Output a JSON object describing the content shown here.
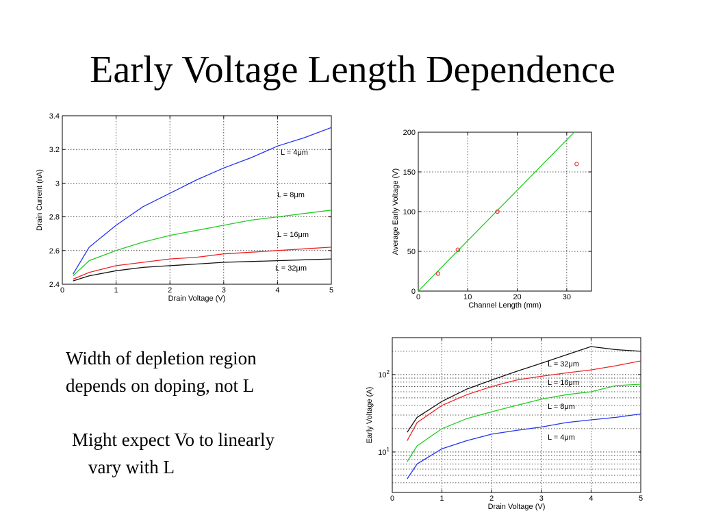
{
  "title": "Early Voltage Length Dependence",
  "text_blocks": {
    "block1": [
      "Width of depletion region",
      "depends on doping, not L"
    ],
    "block2": [
      "Might expect Vo to linearly",
      "vary with L"
    ]
  },
  "chart_data": [
    {
      "type": "line",
      "xlabel": "Drain Voltage (V)",
      "ylabel": "Drain Current (nA)",
      "xlim": [
        0,
        5
      ],
      "ylim": [
        2.4,
        3.4
      ],
      "x_ticks": [
        0,
        1,
        2,
        3,
        4,
        5
      ],
      "y_ticks": [
        2.4,
        2.6,
        2.8,
        3,
        3.2,
        3.4
      ],
      "y_tick_labels": [
        "2.4",
        "2.6",
        "2.8",
        "3",
        "3.2",
        "3.4"
      ],
      "grid": true,
      "series": [
        {
          "name": "L = 4μm",
          "color": "#2233ee",
          "points": [
            [
              0.2,
              2.46
            ],
            [
              0.5,
              2.62
            ],
            [
              1,
              2.75
            ],
            [
              1.5,
              2.86
            ],
            [
              2,
              2.94
            ],
            [
              2.5,
              3.02
            ],
            [
              3,
              3.09
            ],
            [
              3.5,
              3.15
            ],
            [
              4,
              3.22
            ],
            [
              4.5,
              3.27
            ],
            [
              5,
              3.33
            ]
          ]
        },
        {
          "name": "L = 8μm",
          "color": "#22cc22",
          "points": [
            [
              0.2,
              2.45
            ],
            [
              0.5,
              2.54
            ],
            [
              1,
              2.6
            ],
            [
              1.5,
              2.65
            ],
            [
              2,
              2.69
            ],
            [
              2.5,
              2.72
            ],
            [
              3,
              2.75
            ],
            [
              3.5,
              2.78
            ],
            [
              4,
              2.8
            ],
            [
              4.5,
              2.82
            ],
            [
              5,
              2.84
            ]
          ]
        },
        {
          "name": "L = 16μm",
          "color": "#ee2222",
          "points": [
            [
              0.2,
              2.43
            ],
            [
              0.5,
              2.47
            ],
            [
              1,
              2.51
            ],
            [
              1.5,
              2.53
            ],
            [
              2,
              2.55
            ],
            [
              2.5,
              2.56
            ],
            [
              3,
              2.58
            ],
            [
              3.5,
              2.59
            ],
            [
              4,
              2.6
            ],
            [
              4.5,
              2.61
            ],
            [
              5,
              2.62
            ]
          ]
        },
        {
          "name": "L = 32μm",
          "color": "#111111",
          "points": [
            [
              0.2,
              2.42
            ],
            [
              0.5,
              2.45
            ],
            [
              1,
              2.48
            ],
            [
              1.5,
              2.5
            ],
            [
              2,
              2.51
            ],
            [
              2.5,
              2.52
            ],
            [
              3,
              2.53
            ],
            [
              3.5,
              2.535
            ],
            [
              4,
              2.54
            ],
            [
              4.5,
              2.545
            ],
            [
              5,
              2.55
            ]
          ]
        }
      ]
    },
    {
      "type": "scatter",
      "xlabel": "Channel Length (mm)",
      "ylabel": "Average Early Voltage (V)",
      "xlim": [
        0,
        35
      ],
      "ylim": [
        0,
        200
      ],
      "x_ticks": [
        0,
        10,
        20,
        30
      ],
      "y_ticks": [
        0,
        50,
        100,
        150,
        200
      ],
      "grid": true,
      "series": [
        {
          "color": "#ee3333",
          "points": [
            [
              4,
              22
            ],
            [
              8,
              52
            ],
            [
              16,
              100
            ],
            [
              32,
              160
            ]
          ]
        },
        {
          "type": "line",
          "color": "#22cc22",
          "points": [
            [
              0,
              0
            ],
            [
              32,
              203
            ]
          ]
        }
      ]
    },
    {
      "type": "line",
      "xlabel": "Drain Voltage (V)",
      "ylabel": "Early Voltage (A)",
      "y_scale": "log",
      "xlim": [
        0,
        5
      ],
      "ylim": [
        3,
        300
      ],
      "x_ticks": [
        0,
        1,
        2,
        3,
        4,
        5
      ],
      "y_ticks": [
        10,
        100
      ],
      "y_tick_labels": [
        {
          "base": "10",
          "exp": "1"
        },
        {
          "base": "10",
          "exp": "2"
        }
      ],
      "grid": true,
      "series": [
        {
          "name": "L = 32μm",
          "color": "#111111",
          "points": [
            [
              0.3,
              18
            ],
            [
              0.5,
              28
            ],
            [
              1,
              45
            ],
            [
              1.5,
              65
            ],
            [
              2,
              85
            ],
            [
              2.5,
              110
            ],
            [
              3,
              140
            ],
            [
              3.5,
              180
            ],
            [
              4,
              230
            ],
            [
              4.5,
              210
            ],
            [
              5,
              200
            ]
          ]
        },
        {
          "name": "L = 16μm",
          "color": "#ee2222",
          "points": [
            [
              0.3,
              14
            ],
            [
              0.5,
              24
            ],
            [
              1,
              40
            ],
            [
              1.5,
              55
            ],
            [
              2,
              70
            ],
            [
              2.5,
              85
            ],
            [
              3,
              95
            ],
            [
              3.5,
              105
            ],
            [
              4,
              115
            ],
            [
              4.5,
              130
            ],
            [
              5,
              150
            ]
          ]
        },
        {
          "name": "L = 8μm",
          "color": "#22cc22",
          "points": [
            [
              0.3,
              7.5
            ],
            [
              0.5,
              12
            ],
            [
              1,
              20
            ],
            [
              1.5,
              27
            ],
            [
              2,
              33
            ],
            [
              2.5,
              40
            ],
            [
              3,
              48
            ],
            [
              3.5,
              55
            ],
            [
              4,
              60
            ],
            [
              4.5,
              72
            ],
            [
              5,
              75
            ]
          ]
        },
        {
          "name": "L = 4μm",
          "color": "#2233ee",
          "points": [
            [
              0.3,
              4.5
            ],
            [
              0.5,
              7
            ],
            [
              1,
              11
            ],
            [
              1.5,
              14
            ],
            [
              2,
              17
            ],
            [
              2.5,
              19
            ],
            [
              3,
              21
            ],
            [
              3.5,
              24
            ],
            [
              4,
              26
            ],
            [
              4.5,
              28
            ],
            [
              5,
              31
            ]
          ]
        }
      ]
    }
  ]
}
